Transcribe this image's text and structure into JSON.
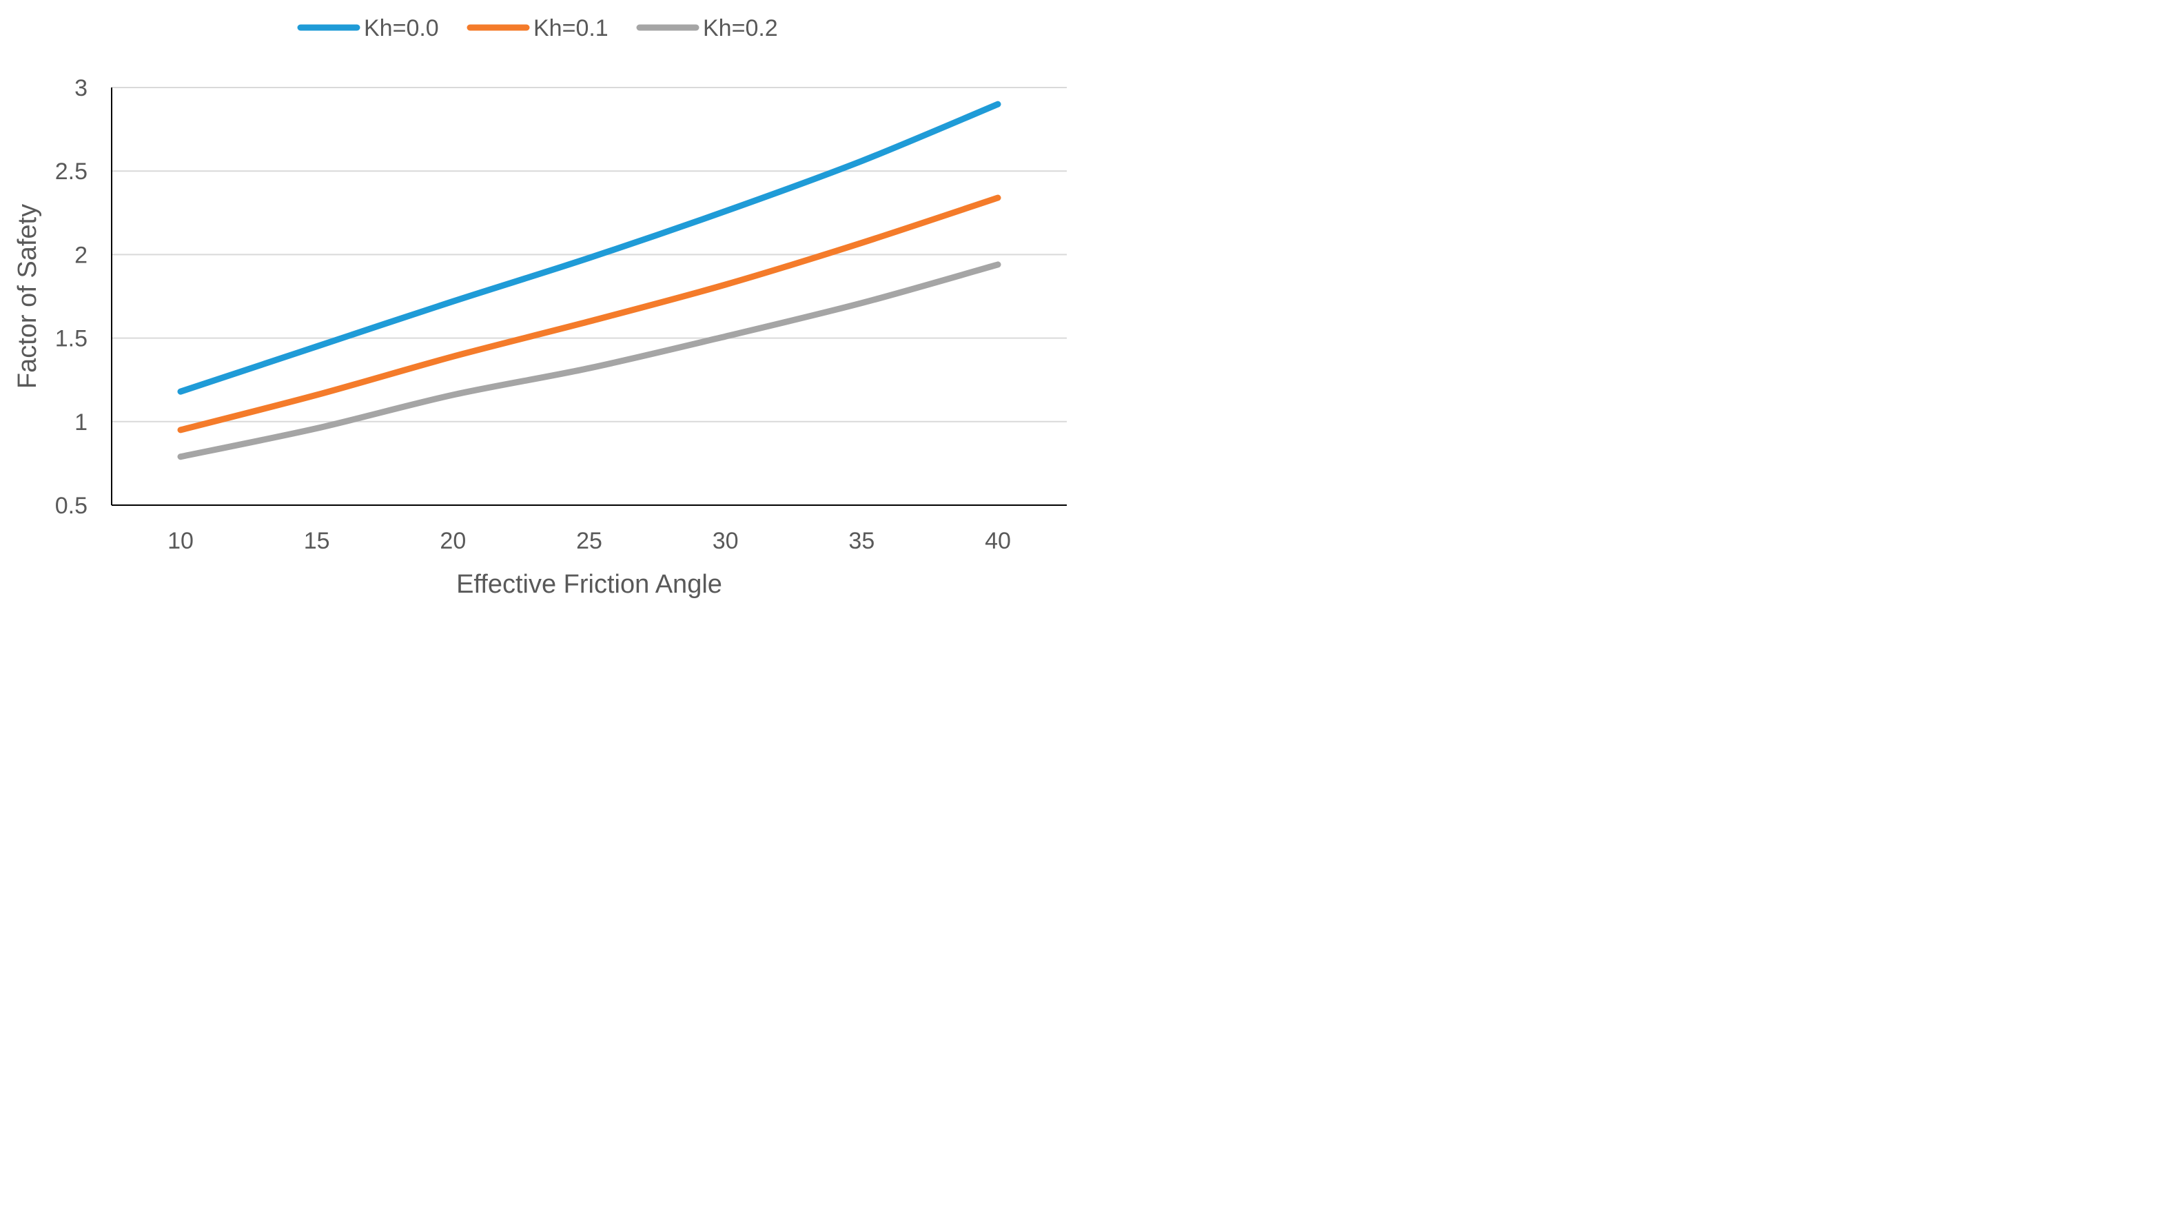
{
  "chart_data": {
    "type": "line",
    "title": "",
    "xlabel": "Effective Friction Angle",
    "ylabel": "Factor of Safety",
    "categories": [
      "10",
      "15",
      "20",
      "25",
      "30",
      "35",
      "40"
    ],
    "xlim": [
      10,
      40
    ],
    "ylim": [
      0.5,
      3
    ],
    "y_ticks": [
      "0.5",
      "1",
      "1.5",
      "2",
      "2.5",
      "3"
    ],
    "grid": "horizontal",
    "legend_position": "top",
    "series": [
      {
        "name": "Kh=0.0",
        "color": "#1F9BD7",
        "values": [
          1.18,
          1.45,
          1.72,
          1.98,
          2.26,
          2.56,
          2.9
        ]
      },
      {
        "name": "Kh=0.1",
        "color": "#F47B2A",
        "values": [
          0.95,
          1.16,
          1.39,
          1.6,
          1.82,
          2.07,
          2.34
        ]
      },
      {
        "name": "Kh=0.2",
        "color": "#A5A5A5",
        "values": [
          0.79,
          0.96,
          1.16,
          1.32,
          1.51,
          1.71,
          1.94
        ]
      }
    ]
  }
}
